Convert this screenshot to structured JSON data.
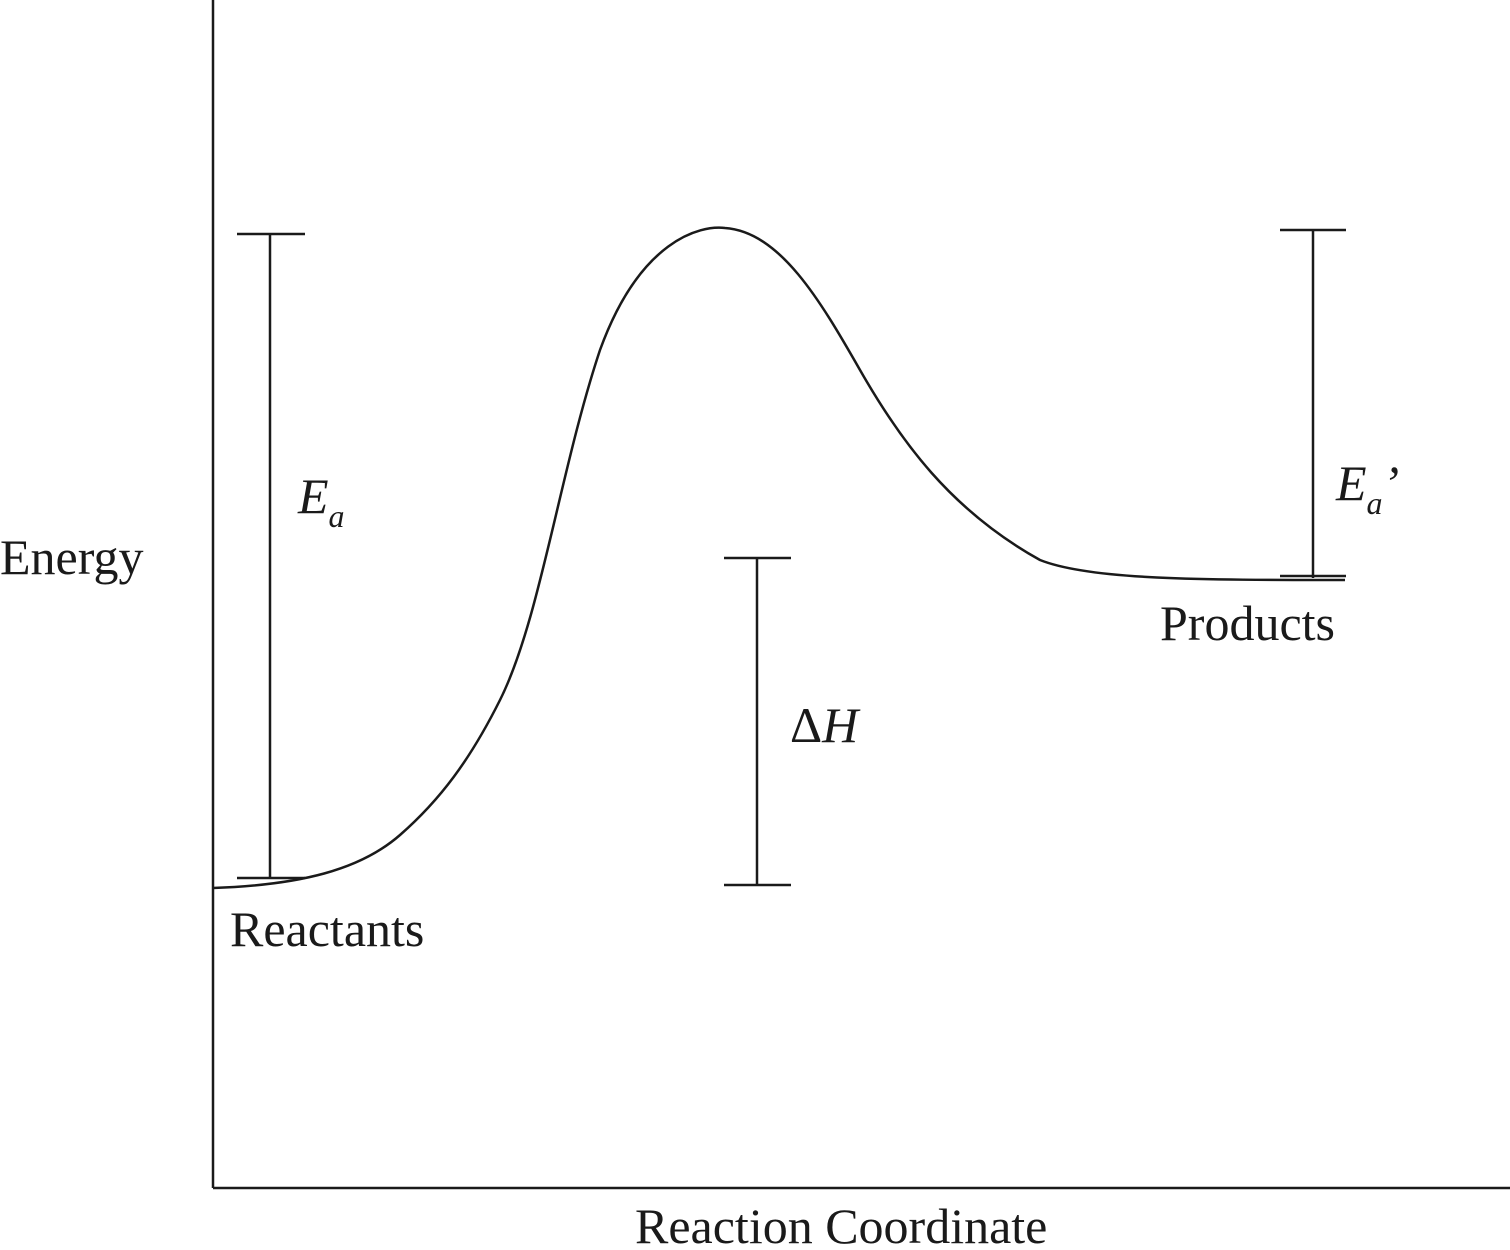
{
  "diagram": {
    "type": "reaction energy diagram",
    "y_axis_label": "Energy",
    "x_axis_label": "Reaction Coordinate",
    "reactants_label": "Reactants",
    "products_label": "Products",
    "activation_energy": {
      "symbol": "E",
      "subscript": "a"
    },
    "reverse_activation_energy": {
      "symbol": "E",
      "subscript": "a",
      "prime": "’"
    },
    "enthalpy_change": {
      "delta": "Δ",
      "symbol": "H"
    },
    "line_color": "#1a1a1a"
  }
}
